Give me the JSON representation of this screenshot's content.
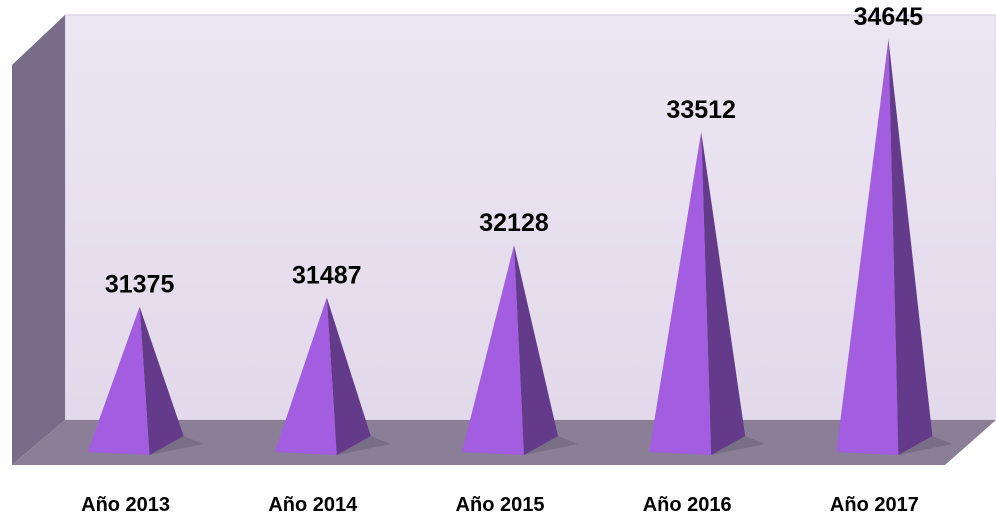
{
  "chart_data": {
    "type": "pyramid",
    "categories": [
      "Año 2013",
      "Año 2014",
      "Año 2015",
      "Año 2016",
      "Año 2017"
    ],
    "values": [
      31375,
      31487,
      32128,
      33512,
      34645
    ],
    "color": "#a25de0",
    "ylim": [
      29600,
      35000
    ]
  }
}
